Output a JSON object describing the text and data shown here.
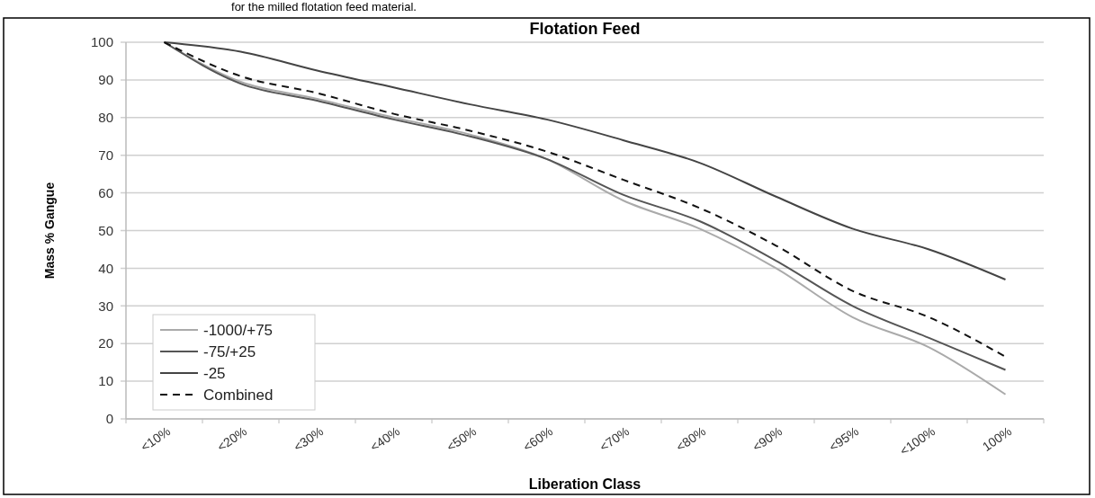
{
  "chart_data": {
    "type": "line",
    "title": "Flotation Feed",
    "xlabel": "Liberation Class",
    "ylabel": "Mass % Gangue",
    "annotations": [
      "for the milled flotation feed material."
    ],
    "categories": [
      "<10%",
      "<20%",
      "<30%",
      "<40%",
      "<50%",
      "<60%",
      "<70%",
      "<80%",
      "<90%",
      "<95%",
      "<100%",
      "100%"
    ],
    "series": [
      {
        "name": "-1000/+75",
        "color": "#aaaaaa",
        "line_style": "solid",
        "values": [
          100,
          89.5,
          85,
          80,
          75.5,
          69,
          58,
          50.5,
          40,
          27,
          19,
          6.5
        ]
      },
      {
        "name": "-75/+25",
        "color": "#555555",
        "line_style": "solid",
        "values": [
          100,
          89,
          84.5,
          79.5,
          75,
          69,
          59.5,
          52.5,
          42,
          30,
          21.5,
          13
        ]
      },
      {
        "name": "-25",
        "color": "#444444",
        "line_style": "solid",
        "values": [
          100,
          97.5,
          92.5,
          88,
          83.5,
          79.5,
          74,
          68,
          59,
          50.5,
          45,
          37
        ]
      },
      {
        "name": "Combined",
        "color": "#111111",
        "line_style": "dashed",
        "values": [
          100,
          91,
          86.5,
          81,
          76.5,
          71,
          63.5,
          56,
          46,
          34,
          27,
          16.5
        ]
      }
    ],
    "ylim": [
      0,
      100
    ],
    "yticks": [
      0,
      10,
      20,
      30,
      40,
      50,
      60,
      70,
      80,
      90,
      100
    ],
    "grid": "y",
    "legend": "bottom left"
  }
}
